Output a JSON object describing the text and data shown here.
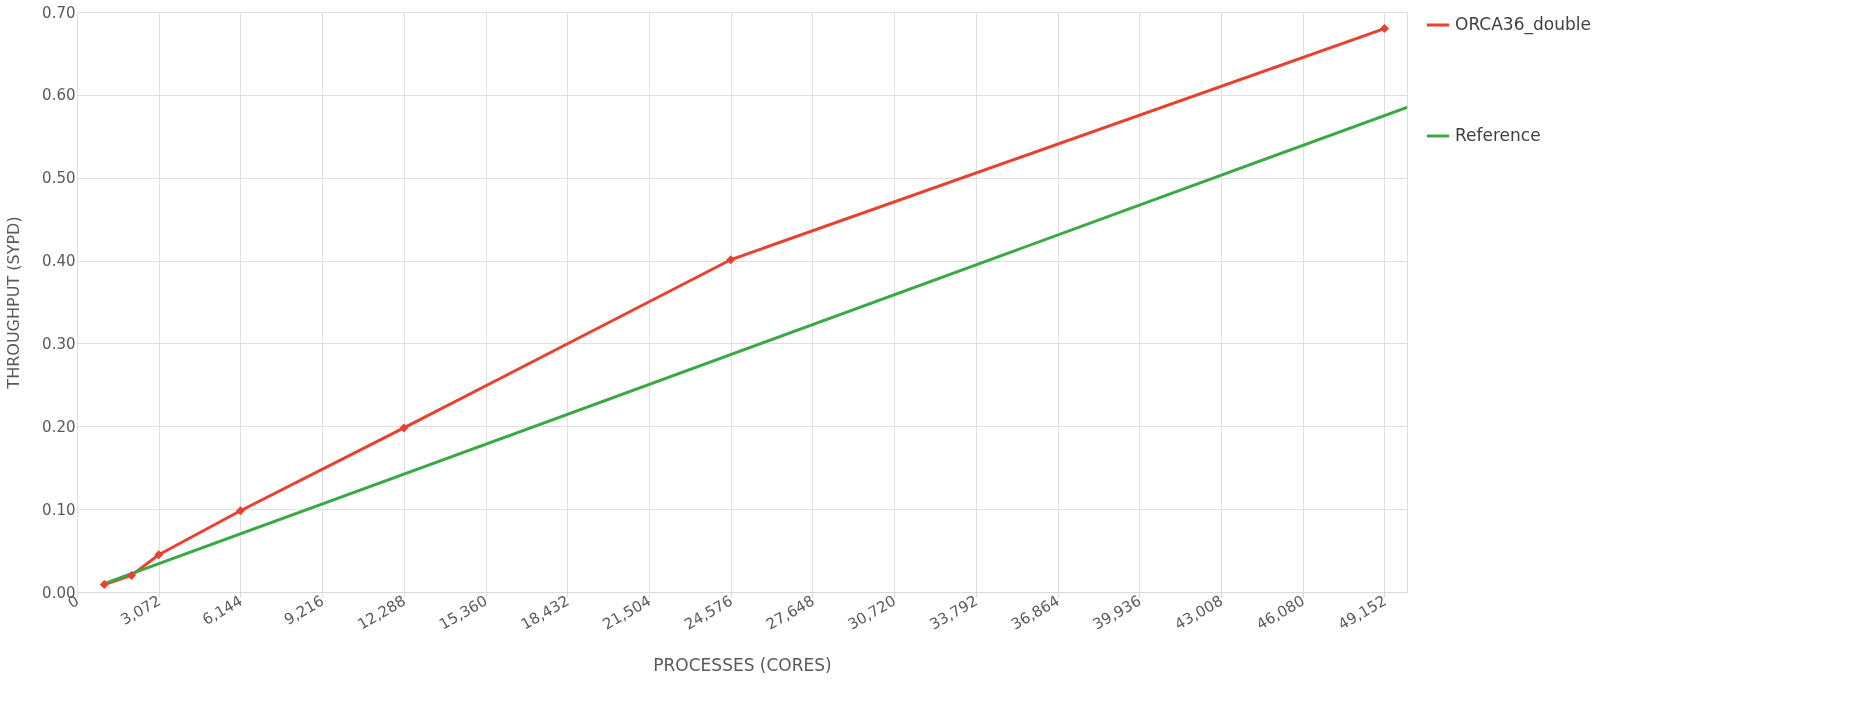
{
  "chart_data": {
    "type": "line",
    "xlabel": "PROCESSES (CORES)",
    "ylabel": "THROUGHPUT (SYPD)",
    "xlim": [
      0,
      50000
    ],
    "xticks": [
      0,
      {
        "value": 3072,
        "label": "3,072"
      },
      {
        "value": 6144,
        "label": "6,144"
      },
      {
        "value": 9216,
        "label": "9,216"
      },
      {
        "value": 12288,
        "label": "12,288"
      },
      {
        "value": 15360,
        "label": "15,360"
      },
      {
        "value": 18432,
        "label": "18,432"
      },
      {
        "value": 21504,
        "label": "21,504"
      },
      {
        "value": 24576,
        "label": "24,576"
      },
      {
        "value": 27648,
        "label": "27,648"
      },
      {
        "value": 30720,
        "label": "30,720"
      },
      {
        "value": 33792,
        "label": "33,792"
      },
      {
        "value": 36864,
        "label": "36,864"
      },
      {
        "value": 39936,
        "label": "39,936"
      },
      {
        "value": 43008,
        "label": "43,008"
      },
      {
        "value": 46080,
        "label": "46,080"
      },
      {
        "value": 49152,
        "label": "49,152"
      }
    ],
    "ylim": [
      0,
      0.7
    ],
    "yticks": [
      {
        "value": 0,
        "label": "0.00"
      },
      {
        "value": 0.1,
        "label": "0.10"
      },
      {
        "value": 0.2,
        "label": "0.20"
      },
      {
        "value": 0.3,
        "label": "0.30"
      },
      {
        "value": 0.4,
        "label": "0.40"
      },
      {
        "value": 0.5,
        "label": "0.50"
      },
      {
        "value": 0.6,
        "label": "0.60"
      },
      {
        "value": 0.7,
        "label": "0.70"
      }
    ],
    "grid": true,
    "legend": "right",
    "series": [
      {
        "name": "ORCA36_double",
        "color": "#e8412f",
        "marker": "diamond",
        "line_style": "solid",
        "x": [
          1024,
          2048,
          3072,
          6144,
          12288,
          24576,
          49152
        ],
        "values": [
          0.009,
          0.02,
          0.045,
          0.098,
          0.198,
          0.401,
          0.68
        ]
      },
      {
        "name": "Reference",
        "color": "#3aa843",
        "marker": "none",
        "line_style": "solid",
        "x": [
          1024,
          50000
        ],
        "values": [
          0.01,
          0.585
        ]
      }
    ]
  }
}
